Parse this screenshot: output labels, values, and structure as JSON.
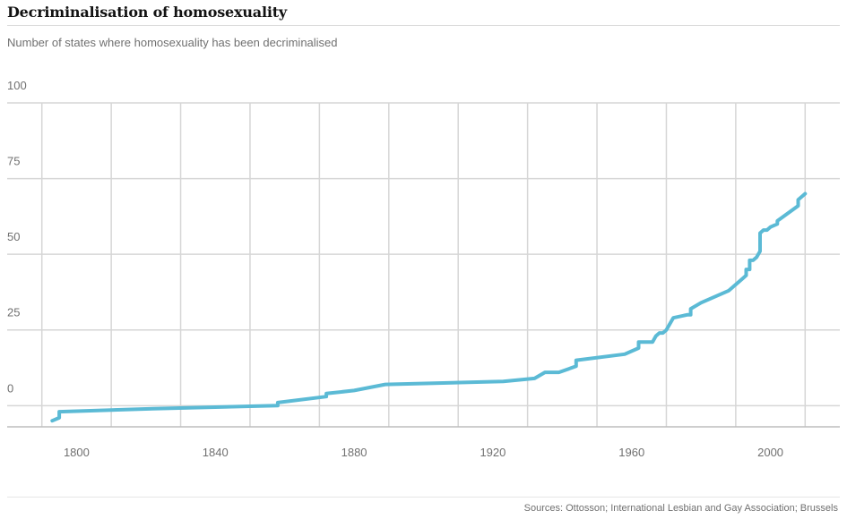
{
  "header": {
    "title": "Decriminalisation of homosexuality",
    "subtitle": "Number of states where homosexuality has been decriminalised"
  },
  "footer": {
    "source": "Sources: Ottosson; International Lesbian and Gay Association; Brussels"
  },
  "colors": {
    "line": "#5bbad5",
    "grid": "#d6d6d6",
    "text": "#707070"
  },
  "chart_data": {
    "type": "line",
    "title": "Decriminalisation of homosexuality",
    "subtitle": "Number of states where homosexuality has been decriminalised",
    "xlabel": "",
    "ylabel": "",
    "xlim": [
      1780,
      2020
    ],
    "ylim": [
      -7,
      100
    ],
    "x_ticks": [
      1800,
      1840,
      1880,
      1920,
      1960,
      2000
    ],
    "y_ticks": [
      100,
      75,
      50,
      25,
      0
    ],
    "x_tick_labels": [
      "1800",
      "1840",
      "1880",
      "1920",
      "1960",
      "2000"
    ],
    "y_tick_labels": [
      "100",
      "75",
      "50",
      "25",
      "0"
    ],
    "grid": true,
    "series": [
      {
        "values": [
          [
            1793,
            -5
          ],
          [
            1795,
            -4
          ],
          [
            1795,
            -2
          ],
          [
            1822,
            -1
          ],
          [
            1858,
            0
          ],
          [
            1858,
            1
          ],
          [
            1872,
            3
          ],
          [
            1872,
            4
          ],
          [
            1880,
            5
          ],
          [
            1889,
            7
          ],
          [
            1923,
            8
          ],
          [
            1932,
            9
          ],
          [
            1935,
            11
          ],
          [
            1939,
            11
          ],
          [
            1944,
            13
          ],
          [
            1944,
            15
          ],
          [
            1958,
            17
          ],
          [
            1962,
            19
          ],
          [
            1962,
            21
          ],
          [
            1966,
            21
          ],
          [
            1967,
            23
          ],
          [
            1968,
            24
          ],
          [
            1969,
            24
          ],
          [
            1970,
            25
          ],
          [
            1971,
            27
          ],
          [
            1972,
            29
          ],
          [
            1976,
            30
          ],
          [
            1977,
            30
          ],
          [
            1977,
            32
          ],
          [
            1980,
            34
          ],
          [
            1988,
            38
          ],
          [
            1992,
            42
          ],
          [
            1993,
            43
          ],
          [
            1993,
            45
          ],
          [
            1994,
            45
          ],
          [
            1994,
            48
          ],
          [
            1995,
            48
          ],
          [
            1996,
            49
          ],
          [
            1997,
            51
          ],
          [
            1997,
            57
          ],
          [
            1998,
            58
          ],
          [
            1999,
            58
          ],
          [
            2000,
            59
          ],
          [
            2002,
            60
          ],
          [
            2002,
            61
          ],
          [
            2008,
            66
          ],
          [
            2008,
            68
          ],
          [
            2010,
            70
          ]
        ]
      }
    ]
  }
}
